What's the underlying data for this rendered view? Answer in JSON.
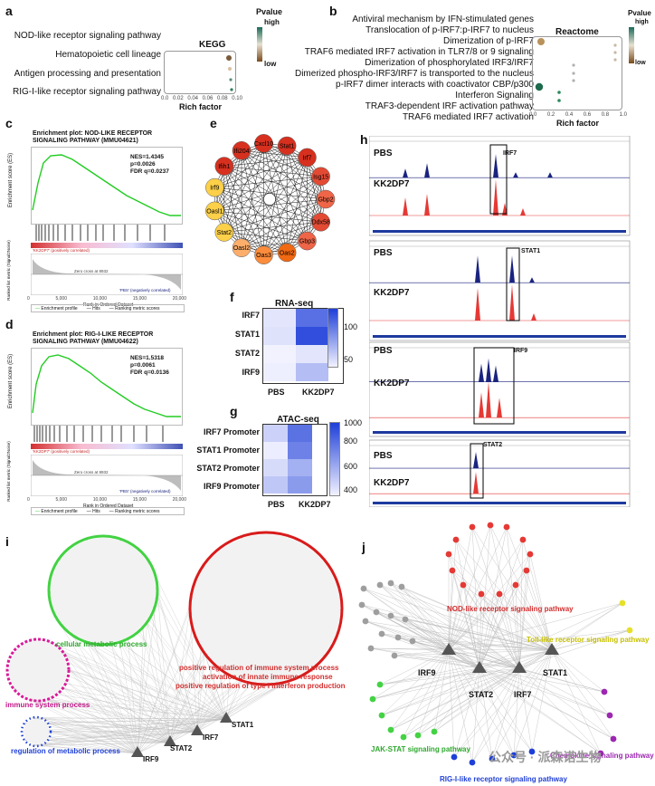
{
  "panels": {
    "a": "a",
    "b": "b",
    "c": "c",
    "d": "d",
    "e": "e",
    "f": "f",
    "g": "g",
    "h": "h",
    "i": "i",
    "j": "j"
  },
  "colors": {
    "enrich_green": "#22cc22",
    "blue_track": "#1a237e",
    "red_track": "#e53935",
    "net_red": "#e53935",
    "net_green": "#43d243",
    "net_magenta": "#d81b9a",
    "net_blue": "#1e3fd8",
    "net_yellow": "#e6e02a",
    "net_purple": "#9c27b0",
    "node_gray": "#9e9e9e"
  },
  "panel_a": {
    "title": "KEGG",
    "terms": [
      "NOD-like receptor signaling pathway",
      "Hematopoietic cell lineage",
      "Antigen processing and presentation",
      "RIG-I-like receptor signaling pathway"
    ],
    "xticks": [
      "0.0",
      "0.02",
      "0.04",
      "0.06",
      "0.08",
      "0.10"
    ],
    "xlabel": "Rich factor",
    "legend_title": "Pvalue",
    "legend_high": "high",
    "legend_low": "low"
  },
  "panel_b": {
    "title": "Reactome",
    "terms": [
      "Antiviral mechanism by IFN-stimulated genes",
      "Translocation of p-IRF7:p-IRF7 to nucleus",
      "Dimerization of p-IRF7",
      "TRAF6 mediated IRF7 activation in TLR7/8 or 9 signaling",
      "Dimerization of phosphorylated IRF3/IRF7",
      "Dimerized phospho-IRF3/IRF7 is transported to the nucleus",
      "p-IRF7 dimer interacts with coactivator CBP/p300",
      "Interferon Signaling",
      "TRAF3-dependent IRF activation pathway",
      "TRAF6 mediated IRF7 activation"
    ],
    "xticks": [
      "0.0",
      "0.2",
      "0.4",
      "0.6",
      "0.8",
      "1.0"
    ],
    "xlabel": "Rich factor",
    "legend_title": "Pvalue",
    "legend_high": "high",
    "legend_low": "low"
  },
  "panel_c": {
    "title1": "Enrichment plot: NOD-LIKE RECEPTOR",
    "title2": "SIGNALING PATHWAY (MMU04621)",
    "nes": "NES=1.4345",
    "p": "p=0.0026",
    "fdr": "FDR q=0.0237",
    "ylabel_es": "Enrichment score (ES)",
    "ylabel_rank": "Ranked list metric (Signal2Noise)",
    "xlabel": "Rank in Ordered Dataset",
    "xticks": [
      "0",
      "5,000",
      "10,000",
      "15,000",
      "20,000"
    ],
    "pos_lab": "'KK2DP7' (positively correlated)",
    "neg_lab": "'PBS' (negatively correlated)",
    "zero_cross": "Zero cross at 8932",
    "legend": [
      "Enrichment profile",
      "Hits",
      "Ranking metric scores"
    ]
  },
  "panel_d": {
    "title1": "Enrichment plot: RIG-I-LIKE RECEPTOR",
    "title2": "SIGNALING PATHWAY (MMU04622)",
    "nes": "NES=1.5318",
    "p": "p=0.0061",
    "fdr": "FDR q=0.0136",
    "ylabel_es": "Enrichment score (ES)",
    "ylabel_rank": "Ranked list metric (Signal2Noise)",
    "xlabel": "Rank in Ordered Dataset",
    "xticks": [
      "0",
      "5,000",
      "10,000",
      "15,000",
      "20,000"
    ],
    "pos_lab": "'KK2DP7' (positively correlated)",
    "neg_lab": "'PBS' (negatively correlated)",
    "zero_cross": "Zero cross at 8932",
    "legend": [
      "Enrichment profile",
      "Hits",
      "Ranking metric scores"
    ]
  },
  "panel_e": {
    "nodes": [
      "Stat1",
      "Irf7",
      "Isg15",
      "Gbp2",
      "Ddx58",
      "Gbp3",
      "Oas2",
      "Oas3",
      "Oasl2",
      "Stat2",
      "Oasl1",
      "Irf9",
      "Ifih1",
      "Ifi204",
      "Cxcl10"
    ]
  },
  "panel_f": {
    "title": "RNA-seq",
    "rows": [
      "IRF7",
      "STAT1",
      "STAT2",
      "IRF9"
    ],
    "cols": [
      "PBS",
      "KK2DP7"
    ],
    "values": [
      [
        28,
        100
      ],
      [
        30,
        120
      ],
      [
        15,
        28
      ],
      [
        22,
        52
      ]
    ],
    "legend_ticks": [
      "100",
      "50"
    ]
  },
  "panel_g": {
    "title": "ATAC-seq",
    "rows": [
      "IRF7 Promoter",
      "STAT1 Promoter",
      "STAT2 Promoter",
      "IRF9 Promoter"
    ],
    "cols": [
      "PBS",
      "KK2DP7"
    ],
    "values": [
      [
        430,
        800
      ],
      [
        320,
        740
      ],
      [
        390,
        560
      ],
      [
        470,
        640
      ]
    ],
    "legend_ticks": [
      "1000",
      "800",
      "600",
      "400"
    ]
  },
  "panel_h": {
    "tracks": [
      {
        "gene": "IRF7",
        "top": "PBS",
        "bottom": "KK2DP7"
      },
      {
        "gene": "STAT1",
        "top": "PBS",
        "bottom": "KK2DP7"
      },
      {
        "gene": "IRF9",
        "top": "PBS",
        "bottom": "KK2DP7"
      },
      {
        "gene": "STAT2",
        "top": "PBS",
        "bottom": "KK2DP7"
      }
    ]
  },
  "panel_i": {
    "cellular": "cellular metabolic process",
    "immune": "immune system process",
    "regulation": "regulation of metabolic process",
    "positive1": "positive regulation of immune system process",
    "positive2": "activation of innate immune response",
    "positive3": "positive regulation of type I interferon production",
    "tfs": [
      "IRF9",
      "STAT2",
      "IRF7",
      "STAT1"
    ]
  },
  "panel_j": {
    "nod": "NOD-like receptor signaling pathway",
    "toll": "Toll-like receptor signaling pathway",
    "jak": "JAK-STAT signaling pathway",
    "chemokine": "Chemokine signaling pathway",
    "rig": "RIG-I-like receptor signaling pathway",
    "tfs": [
      "IRF9",
      "STAT2",
      "IRF7",
      "STAT1"
    ]
  },
  "watermark": "公众号 · 派森诺生物"
}
